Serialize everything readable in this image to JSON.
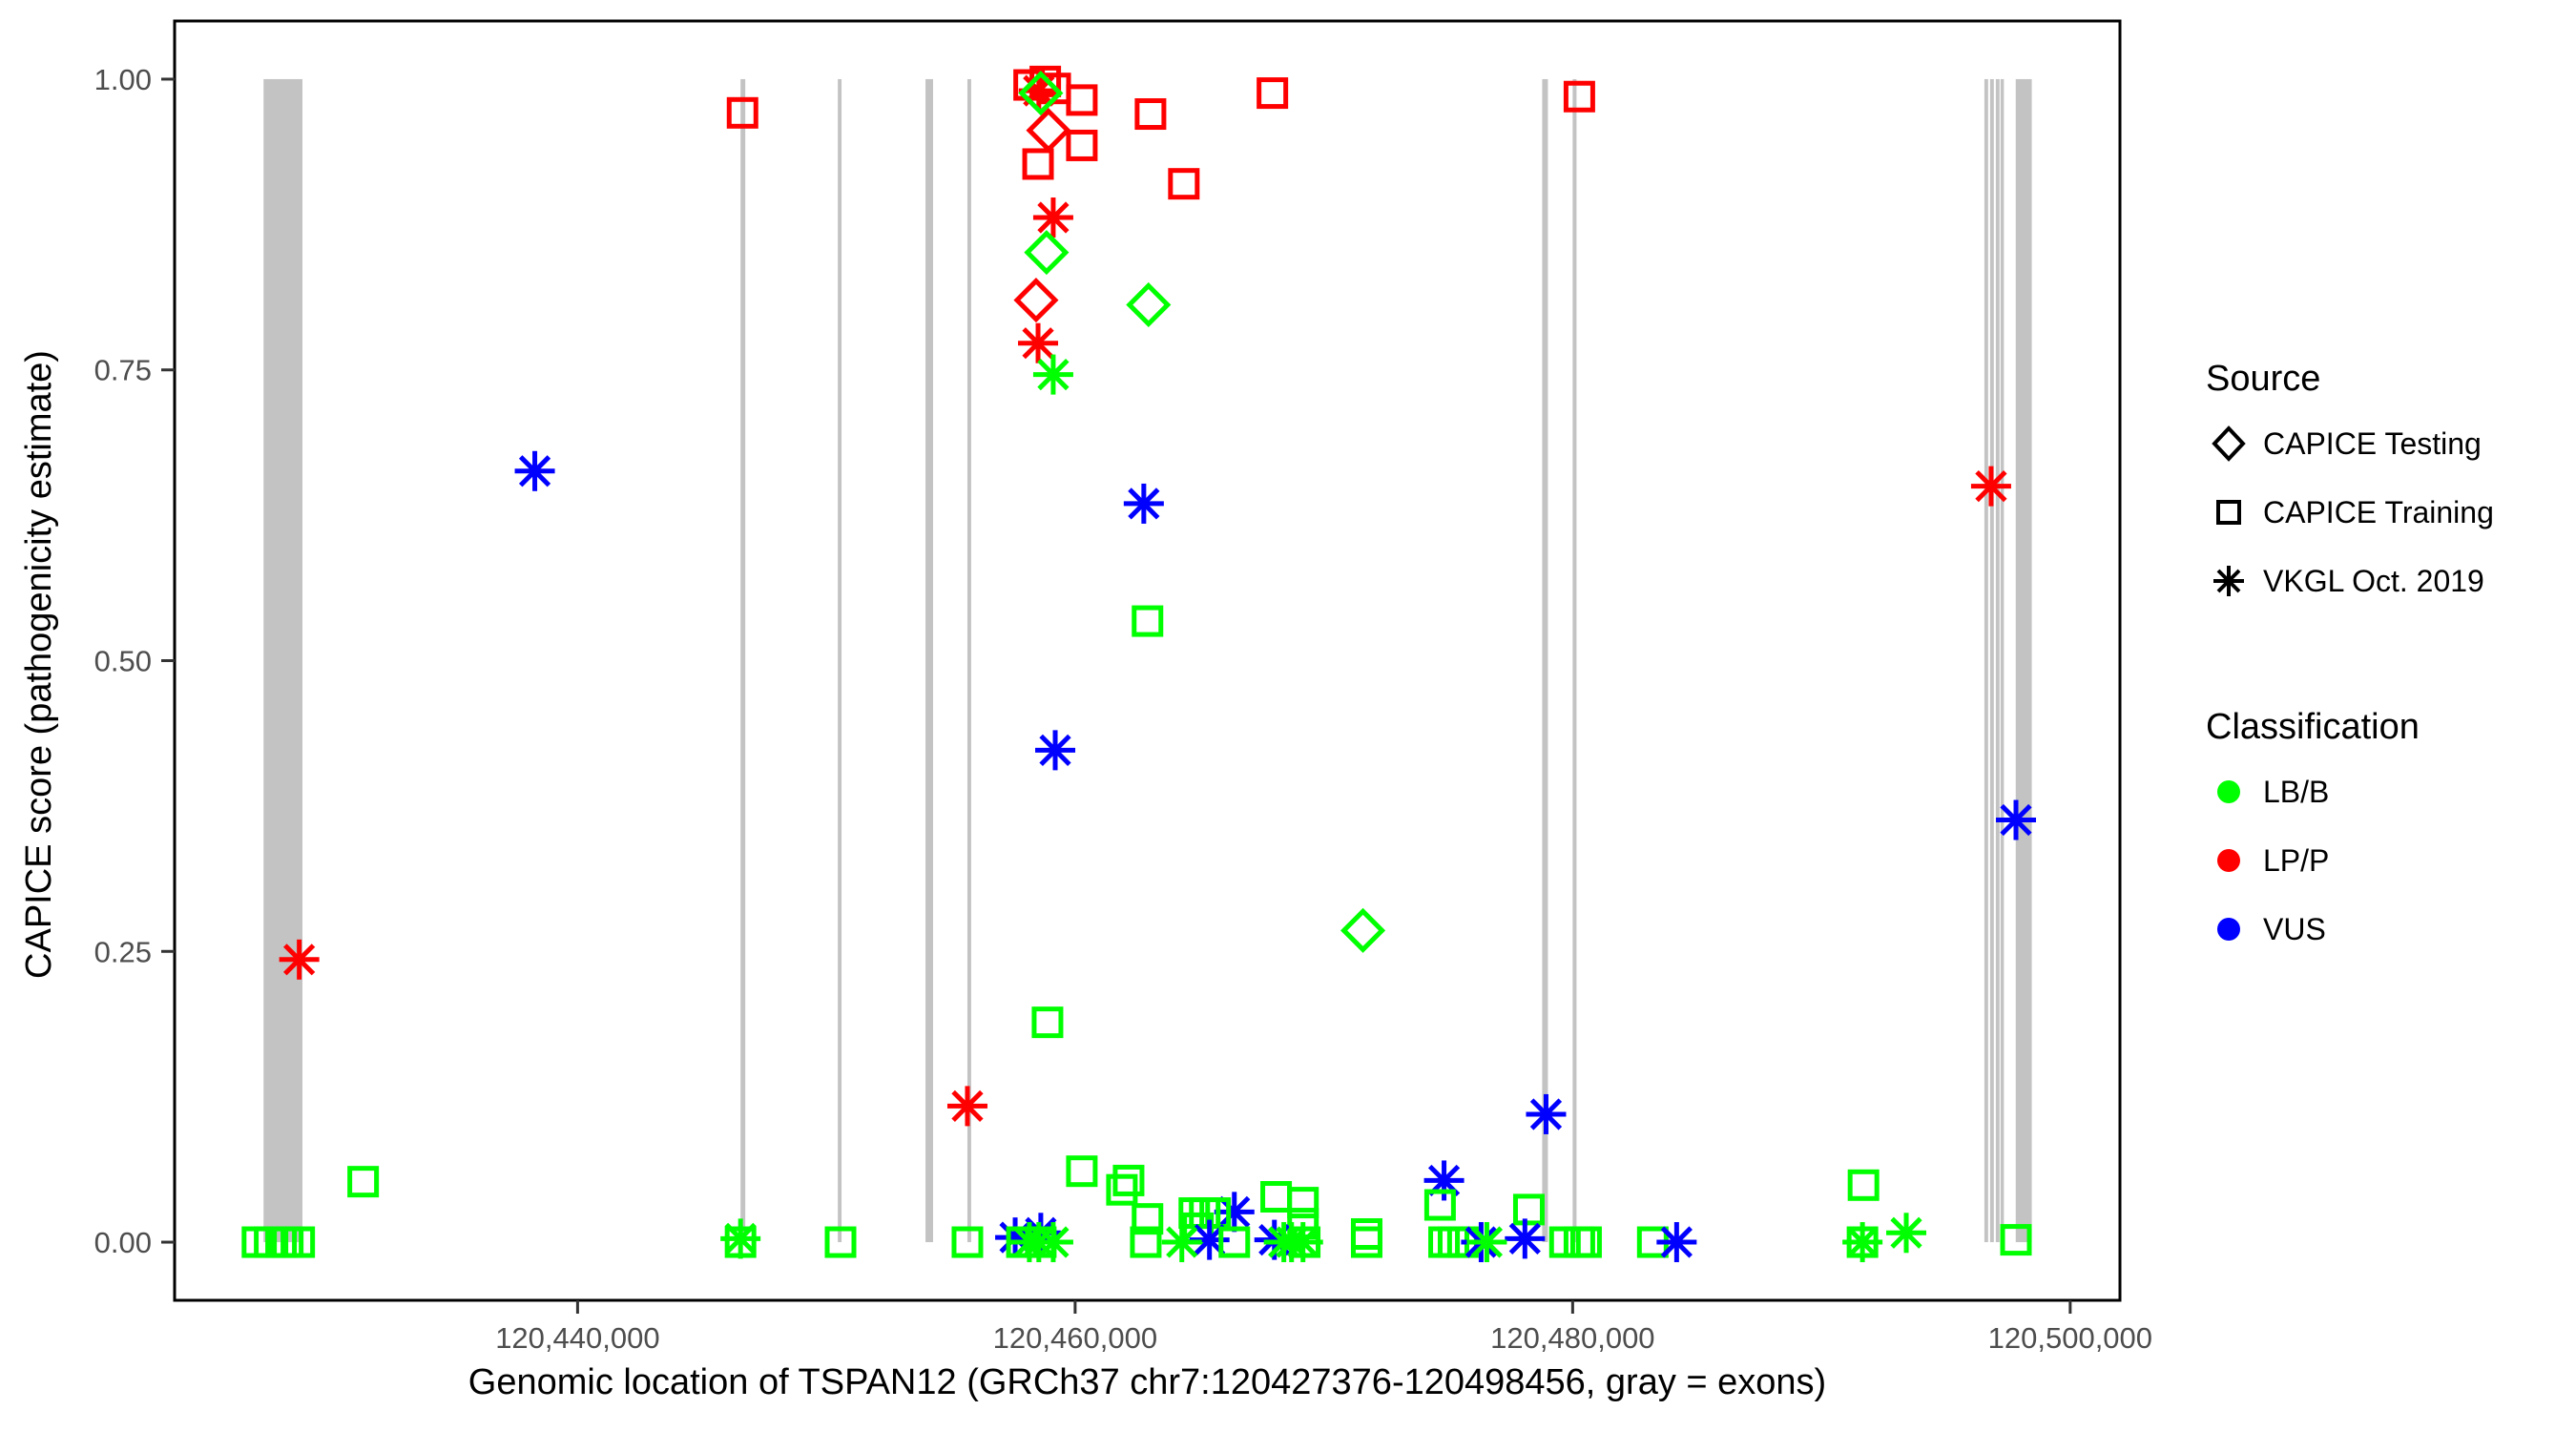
{
  "figure": {
    "x_axis_title": "Genomic location of TSPAN12 (GRCh37 chr7:120427376-120498456, gray = exons)",
    "y_axis_title": "CAPICE score (pathogenicity estimate)"
  },
  "legend": {
    "source": {
      "title": "Source",
      "items": [
        {
          "label": "CAPICE Testing",
          "marker": "diamond-icon"
        },
        {
          "label": "CAPICE Training",
          "marker": "square-icon"
        },
        {
          "label": "VKGL Oct. 2019",
          "marker": "asterisk-icon"
        }
      ]
    },
    "classification": {
      "title": "Classification",
      "items": [
        {
          "label": "LB/B",
          "color": "#00FF00"
        },
        {
          "label": "LP/P",
          "color": "#FF0000"
        },
        {
          "label": "VUS",
          "color": "#0000FF"
        }
      ]
    }
  },
  "chart_data": {
    "type": "scatter",
    "title": "",
    "xlabel": "Genomic location of TSPAN12 (GRCh37 chr7:120427376-120498456, gray = exons)",
    "ylabel": "CAPICE score (pathogenicity estimate)",
    "xlim": [
      120423800,
      120502000
    ],
    "ylim": [
      -0.05,
      1.05
    ],
    "grid": false,
    "legend_position": "right",
    "x_ticks": [
      {
        "value": 120440000,
        "label": "120,440,000"
      },
      {
        "value": 120460000,
        "label": "120,460,000"
      },
      {
        "value": 120480000,
        "label": "120,480,000"
      },
      {
        "value": 120500000,
        "label": "120,500,000"
      }
    ],
    "y_ticks": [
      {
        "value": 0.0,
        "label": "0.00"
      },
      {
        "value": 0.25,
        "label": "0.25"
      },
      {
        "value": 0.5,
        "label": "0.50"
      },
      {
        "value": 0.75,
        "label": "0.75"
      },
      {
        "value": 1.0,
        "label": "1.00"
      }
    ],
    "colors": {
      "LB/B": "#00FF00",
      "LP/P": "#FF0000",
      "VUS": "#0000FF"
    },
    "marker_by_source": {
      "CAPICE Testing": "diamond",
      "CAPICE Training": "square",
      "VKGL Oct. 2019": "asterisk"
    },
    "exon_color": "#C3C3C3",
    "exons_bp": [
      [
        120427376,
        120428940
      ],
      [
        120446550,
        120446740
      ],
      [
        120450460,
        120450610
      ],
      [
        120453985,
        120454290
      ],
      [
        120455670,
        120455820
      ],
      [
        120478775,
        120479005
      ],
      [
        120480000,
        120480155
      ],
      [
        120496550,
        120496700
      ],
      [
        120496780,
        120496930
      ],
      [
        120497010,
        120497160
      ],
      [
        120497200,
        120497320
      ],
      [
        120497810,
        120498456
      ]
    ],
    "points_format": [
      "bp",
      "score",
      "classification",
      "source"
    ],
    "points": [
      [
        120458150,
        0.995,
        "LP/P",
        "CAPICE Training"
      ],
      [
        120458800,
        0.998,
        "LP/P",
        "CAPICE Training"
      ],
      [
        120459200,
        0.992,
        "LP/P",
        "CAPICE Training"
      ],
      [
        120458540,
        0.99,
        "LP/P",
        "VKGL Oct. 2019"
      ],
      [
        120458620,
        0.988,
        "LB/B",
        "CAPICE Testing"
      ],
      [
        120460270,
        0.982,
        "LP/P",
        "CAPICE Training"
      ],
      [
        120446630,
        0.971,
        "LP/P",
        "CAPICE Training"
      ],
      [
        120463030,
        0.97,
        "LP/P",
        "CAPICE Training"
      ],
      [
        120467930,
        0.988,
        "LP/P",
        "CAPICE Training"
      ],
      [
        120480270,
        0.985,
        "LP/P",
        "CAPICE Training"
      ],
      [
        120458930,
        0.956,
        "LP/P",
        "CAPICE Testing"
      ],
      [
        120460270,
        0.943,
        "LP/P",
        "CAPICE Training"
      ],
      [
        120458510,
        0.927,
        "LP/P",
        "CAPICE Training"
      ],
      [
        120464370,
        0.91,
        "LP/P",
        "CAPICE Training"
      ],
      [
        120459120,
        0.881,
        "LP/P",
        "VKGL Oct. 2019"
      ],
      [
        120458850,
        0.851,
        "LB/B",
        "CAPICE Testing"
      ],
      [
        120458430,
        0.81,
        "LP/P",
        "CAPICE Testing"
      ],
      [
        120462950,
        0.806,
        "LB/B",
        "CAPICE Testing"
      ],
      [
        120458510,
        0.773,
        "LP/P",
        "VKGL Oct. 2019"
      ],
      [
        120459120,
        0.746,
        "LB/B",
        "VKGL Oct. 2019"
      ],
      [
        120438280,
        0.663,
        "VUS",
        "VKGL Oct. 2019"
      ],
      [
        120496820,
        0.65,
        "LP/P",
        "VKGL Oct. 2019"
      ],
      [
        120462760,
        0.635,
        "VUS",
        "VKGL Oct. 2019"
      ],
      [
        120462910,
        0.534,
        "LB/B",
        "CAPICE Training"
      ],
      [
        120459200,
        0.423,
        "VUS",
        "VKGL Oct. 2019"
      ],
      [
        120497820,
        0.363,
        "VUS",
        "VKGL Oct. 2019"
      ],
      [
        120471570,
        0.268,
        "LB/B",
        "CAPICE Testing"
      ],
      [
        120428810,
        0.243,
        "LP/P",
        "VKGL Oct. 2019"
      ],
      [
        120458890,
        0.189,
        "LB/B",
        "CAPICE Training"
      ],
      [
        120455670,
        0.117,
        "LP/P",
        "VKGL Oct. 2019"
      ],
      [
        120478930,
        0.11,
        "VUS",
        "VKGL Oct. 2019"
      ],
      [
        120460270,
        0.061,
        "LB/B",
        "CAPICE Training"
      ],
      [
        120462150,
        0.053,
        "LB/B",
        "CAPICE Training"
      ],
      [
        120461880,
        0.045,
        "LB/B",
        "CAPICE Training"
      ],
      [
        120431380,
        0.052,
        "LB/B",
        "CAPICE Training"
      ],
      [
        120491690,
        0.049,
        "LB/B",
        "CAPICE Training"
      ],
      [
        120474830,
        0.053,
        "VUS",
        "VKGL Oct. 2019"
      ],
      [
        120468080,
        0.039,
        "LB/B",
        "CAPICE Training"
      ],
      [
        120469160,
        0.034,
        "LB/B",
        "CAPICE Training"
      ],
      [
        120474670,
        0.032,
        "LB/B",
        "CAPICE Training"
      ],
      [
        120478240,
        0.028,
        "LB/B",
        "CAPICE Training"
      ],
      [
        120466400,
        0.026,
        "VUS",
        "VKGL Oct. 2019"
      ],
      [
        120464790,
        0.025,
        "LB/B",
        "CAPICE Training"
      ],
      [
        120465210,
        0.025,
        "LB/B",
        "CAPICE Training"
      ],
      [
        120465630,
        0.025,
        "LB/B",
        "CAPICE Training"
      ],
      [
        120462910,
        0.02,
        "LB/B",
        "CAPICE Training"
      ],
      [
        120469160,
        0.016,
        "LB/B",
        "CAPICE Training"
      ],
      [
        120464940,
        0.012,
        "LB/B",
        "CAPICE Training"
      ],
      [
        120493410,
        0.008,
        "LB/B",
        "VKGL Oct. 2019"
      ],
      [
        120458620,
        0.008,
        "VUS",
        "VKGL Oct. 2019"
      ],
      [
        120471720,
        0.007,
        "LB/B",
        "CAPICE Training"
      ],
      [
        120457590,
        0.004,
        "VUS",
        "VKGL Oct. 2019"
      ],
      [
        120478080,
        0.003,
        "VUS",
        "VKGL Oct. 2019"
      ],
      [
        120446550,
        0.003,
        "LB/B",
        "VKGL Oct. 2019"
      ],
      [
        120465400,
        0.002,
        "VUS",
        "VKGL Oct. 2019"
      ],
      [
        120468010,
        0.002,
        "VUS",
        "VKGL Oct. 2019"
      ],
      [
        120497820,
        0.002,
        "LB/B",
        "CAPICE Training"
      ],
      [
        120427130,
        0.0,
        "LB/B",
        "CAPICE Training"
      ],
      [
        120427620,
        0.0,
        "LB/B",
        "CAPICE Training"
      ],
      [
        120428080,
        0.0,
        "LB/B",
        "CAPICE Training"
      ],
      [
        120428350,
        0.0,
        "LB/B",
        "CAPICE Training"
      ],
      [
        120428810,
        0.0,
        "LB/B",
        "CAPICE Training"
      ],
      [
        120446550,
        0.0,
        "LB/B",
        "CAPICE Training"
      ],
      [
        120450570,
        0.0,
        "LB/B",
        "CAPICE Training"
      ],
      [
        120455670,
        0.0,
        "LB/B",
        "CAPICE Training"
      ],
      [
        120457860,
        0.0,
        "LB/B",
        "CAPICE Training"
      ],
      [
        120458620,
        0.0,
        "LB/B",
        "CAPICE Training"
      ],
      [
        120458160,
        0.0,
        "LB/B",
        "VKGL Oct. 2019"
      ],
      [
        120458540,
        0.0,
        "LB/B",
        "VKGL Oct. 2019"
      ],
      [
        120459120,
        0.0,
        "LB/B",
        "VKGL Oct. 2019"
      ],
      [
        120462840,
        0.0,
        "LB/B",
        "CAPICE Training"
      ],
      [
        120464290,
        0.0,
        "LB/B",
        "VKGL Oct. 2019"
      ],
      [
        120466400,
        0.0,
        "LB/B",
        "CAPICE Training"
      ],
      [
        120468390,
        0.0,
        "LB/B",
        "VKGL Oct. 2019"
      ],
      [
        120468700,
        0.0,
        "LB/B",
        "VKGL Oct. 2019"
      ],
      [
        120469160,
        0.0,
        "LB/B",
        "VKGL Oct. 2019"
      ],
      [
        120469230,
        0.0,
        "LB/B",
        "CAPICE Training"
      ],
      [
        120471720,
        0.0,
        "LB/B",
        "CAPICE Training"
      ],
      [
        120474830,
        0.0,
        "LB/B",
        "CAPICE Training"
      ],
      [
        120475210,
        0.0,
        "LB/B",
        "CAPICE Training"
      ],
      [
        120475590,
        0.0,
        "LB/B",
        "CAPICE Training"
      ],
      [
        120476320,
        0.0,
        "VUS",
        "VKGL Oct. 2019"
      ],
      [
        120476550,
        0.0,
        "LB/B",
        "VKGL Oct. 2019"
      ],
      [
        120479690,
        0.0,
        "LB/B",
        "CAPICE Training"
      ],
      [
        120480270,
        0.0,
        "LB/B",
        "CAPICE Training"
      ],
      [
        120480540,
        0.0,
        "LB/B",
        "CAPICE Training"
      ],
      [
        120483220,
        0.0,
        "LB/B",
        "CAPICE Training"
      ],
      [
        120484180,
        0.0,
        "VUS",
        "VKGL Oct. 2019"
      ],
      [
        120491650,
        0.0,
        "LB/B",
        "VKGL Oct. 2019"
      ],
      [
        120491650,
        0.0,
        "LB/B",
        "CAPICE Training"
      ]
    ]
  }
}
